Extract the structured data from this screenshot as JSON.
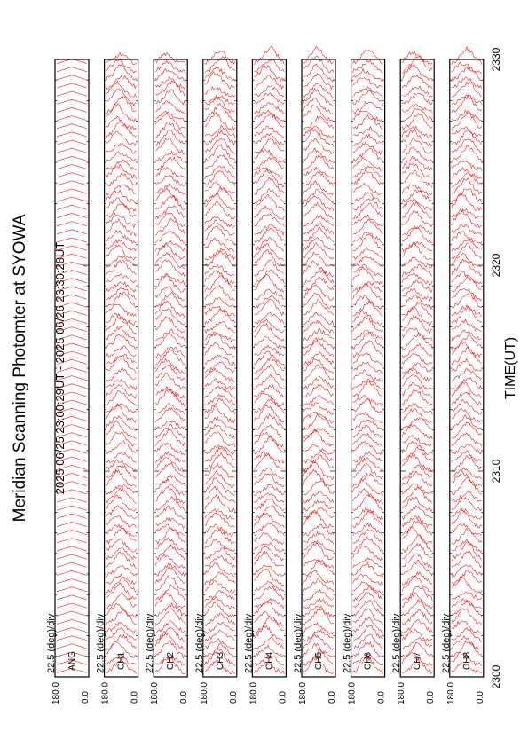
{
  "title": "Meridian Scanning Photomter at SYOWA",
  "time_range": "2025 06/25 23:00:29UT - 2025 06/26 23:30:28UT",
  "xlabel": "TIME(UT)",
  "colors": {
    "trace": "#ff0000",
    "axis": "#000000",
    "background": "#ffffff"
  },
  "chart_data": {
    "type": "line",
    "title": "Meridian Scanning Photomter at SYOWA",
    "subtitle": "2025 06/25 23:00:29UT - 2025 06/26 23:30:28UT",
    "xlabel": "TIME(UT)",
    "x_ticks": [
      "2300",
      "2310",
      "2320",
      "2330"
    ],
    "xlim": [
      2300,
      2330
    ],
    "orientation": "rotated 90 degrees (time increases from bottom to top of page)",
    "panels": [
      {
        "channel": "ANG",
        "scale": "22.5 (deg)/div",
        "ylim": [
          0.0,
          180.0
        ],
        "ytick_labels": [
          "0.0",
          "180.0"
        ],
        "traces": 76
      },
      {
        "channel": "CH1",
        "scale": "22.5 (deg)/div",
        "ylim": [
          0.0,
          180.0
        ],
        "ytick_labels": [
          "0.0",
          "180.0"
        ],
        "traces": 76
      },
      {
        "channel": "CH2",
        "scale": "22.5 (deg)/div",
        "ylim": [
          0.0,
          180.0
        ],
        "ytick_labels": [
          "0.0",
          "180.0"
        ],
        "traces": 76
      },
      {
        "channel": "CH3",
        "scale": "22.5 (deg)/div",
        "ylim": [
          0.0,
          180.0
        ],
        "ytick_labels": [
          "0.0",
          "180.0"
        ],
        "traces": 76
      },
      {
        "channel": "CH4",
        "scale": "22.5 (deg)/div",
        "ylim": [
          0.0,
          180.0
        ],
        "ytick_labels": [
          "0.0",
          "180.0"
        ],
        "traces": 76
      },
      {
        "channel": "CH5",
        "scale": "22.5 (deg)/div",
        "ylim": [
          0.0,
          180.0
        ],
        "ytick_labels": [
          "0.0",
          "180.0"
        ],
        "traces": 76
      },
      {
        "channel": "CH6",
        "scale": "22.5 (deg)/div",
        "ylim": [
          0.0,
          180.0
        ],
        "ytick_labels": [
          "0.0",
          "180.0"
        ],
        "traces": 76
      },
      {
        "channel": "CH7",
        "scale": "22.5 (deg)/div",
        "ylim": [
          0.0,
          180.0
        ],
        "ytick_labels": [
          "0.0",
          "180.0"
        ],
        "traces": 76
      },
      {
        "channel": "CH8",
        "scale": "22.5 (deg)/div",
        "ylim": [
          0.0,
          180.0
        ],
        "ytick_labels": [
          "0.0",
          "180.0"
        ],
        "traces": 76
      }
    ],
    "grid": false,
    "legend": "none"
  }
}
